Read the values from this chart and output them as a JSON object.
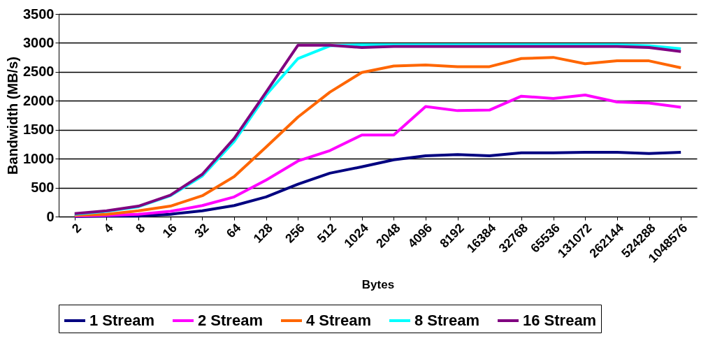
{
  "chart_data": {
    "type": "line",
    "xlabel": "Bytes",
    "ylabel": "Bandwidth (MB/s)",
    "categories": [
      "2",
      "4",
      "8",
      "16",
      "32",
      "64",
      "128",
      "256",
      "512",
      "1024",
      "2048",
      "4096",
      "8192",
      "16384",
      "32768",
      "65536",
      "131072",
      "262144",
      "524288",
      "1048576"
    ],
    "series": [
      {
        "name": "1 Stream",
        "color": "#000080",
        "values": [
          0,
          10,
          10,
          40,
          100,
          190,
          340,
          560,
          750,
          860,
          980,
          1050,
          1070,
          1050,
          1100,
          1100,
          1110,
          1110,
          1090,
          1110
        ]
      },
      {
        "name": "2 Stream",
        "color": "#ff00ff",
        "values": [
          10,
          20,
          40,
          90,
          190,
          340,
          630,
          960,
          1140,
          1410,
          1410,
          1900,
          1830,
          1840,
          2080,
          2040,
          2100,
          1980,
          1960,
          1890
        ]
      },
      {
        "name": "4 Stream",
        "color": "#ff6600",
        "values": [
          20,
          40,
          100,
          180,
          360,
          690,
          1200,
          1720,
          2150,
          2490,
          2600,
          2620,
          2590,
          2590,
          2730,
          2750,
          2640,
          2690,
          2690,
          2570
        ]
      },
      {
        "name": "8 Stream",
        "color": "#00ffff",
        "values": [
          40,
          90,
          170,
          360,
          700,
          1300,
          2100,
          2730,
          2950,
          2970,
          2970,
          2970,
          2970,
          2970,
          2970,
          2970,
          2970,
          2970,
          2950,
          2900
        ]
      },
      {
        "name": "16 Stream",
        "color": "#800080",
        "values": [
          50,
          100,
          180,
          370,
          730,
          1350,
          2150,
          2960,
          2960,
          2920,
          2940,
          2940,
          2940,
          2940,
          2940,
          2940,
          2940,
          2940,
          2920,
          2850
        ]
      }
    ],
    "ylim": [
      0,
      3500
    ],
    "yticks": [
      0,
      500,
      1000,
      1500,
      2000,
      2500,
      3000,
      3500
    ],
    "grid": "y",
    "legend": "bottom",
    "marker": "none",
    "line_style": "solid"
  }
}
